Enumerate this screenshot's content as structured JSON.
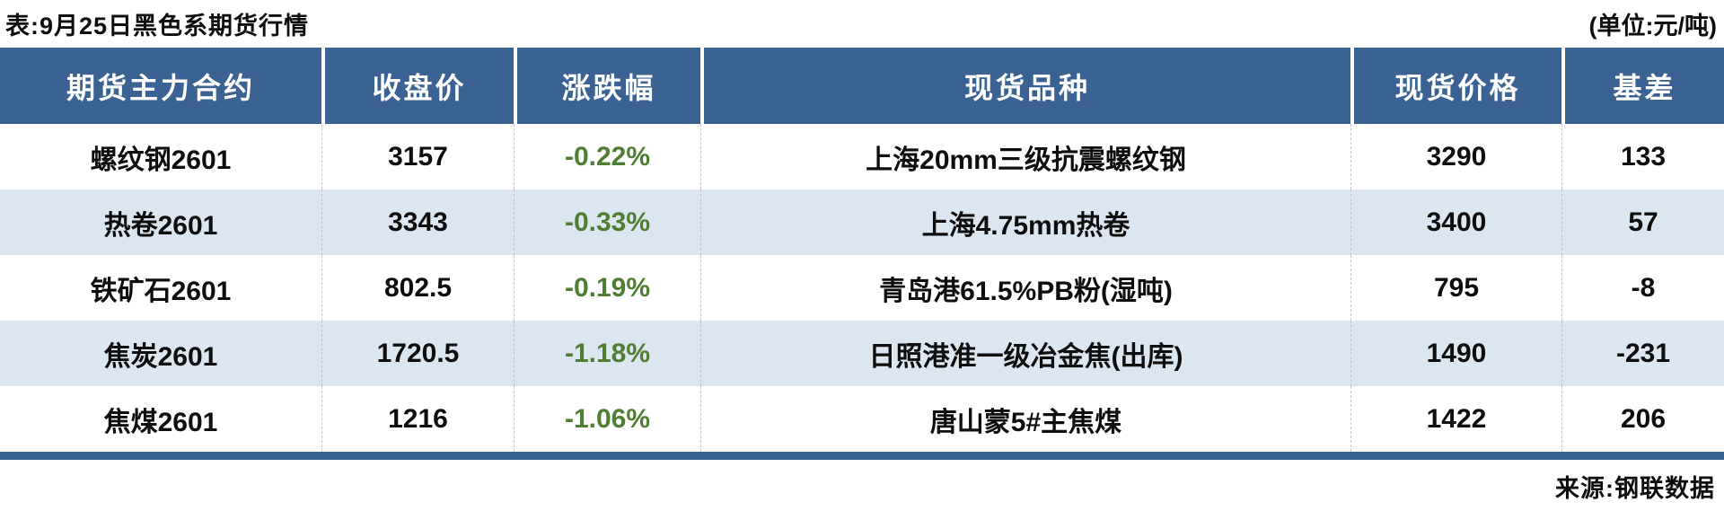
{
  "chart_data": {
    "type": "table",
    "title": "表:9月25日黑色系期货行情",
    "unit": "(单位:元/吨)",
    "source": "来源:钢联数据",
    "columns": [
      "期货主力合约",
      "收盘价",
      "涨跌幅",
      "现货品种",
      "现货价格",
      "基差"
    ],
    "rows": [
      {
        "contract": "螺纹钢2601",
        "close": "3157",
        "change_pct": "-0.22%",
        "spot_variety": "上海20mm三级抗震螺纹钢",
        "spot_price": "3290",
        "basis": "133"
      },
      {
        "contract": "热卷2601",
        "close": "3343",
        "change_pct": "-0.33%",
        "spot_variety": "上海4.75mm热卷",
        "spot_price": "3400",
        "basis": "57"
      },
      {
        "contract": "铁矿石2601",
        "close": "802.5",
        "change_pct": "-0.19%",
        "spot_variety": "青岛港61.5%PB粉(湿吨)",
        "spot_price": "795",
        "basis": "-8"
      },
      {
        "contract": "焦炭2601",
        "close": "1720.5",
        "change_pct": "-1.18%",
        "spot_variety": "日照港准一级冶金焦(出库)",
        "spot_price": "1490",
        "basis": "-231"
      },
      {
        "contract": "焦煤2601",
        "close": "1216",
        "change_pct": "-1.06%",
        "spot_variety": "唐山蒙5#主焦煤",
        "spot_price": "1422",
        "basis": "206"
      }
    ]
  },
  "colors": {
    "header_bg": "#3a6292",
    "row_alt": "#dce6f1",
    "change_green": "#4f7d31",
    "bottom_line": "#35618f"
  }
}
